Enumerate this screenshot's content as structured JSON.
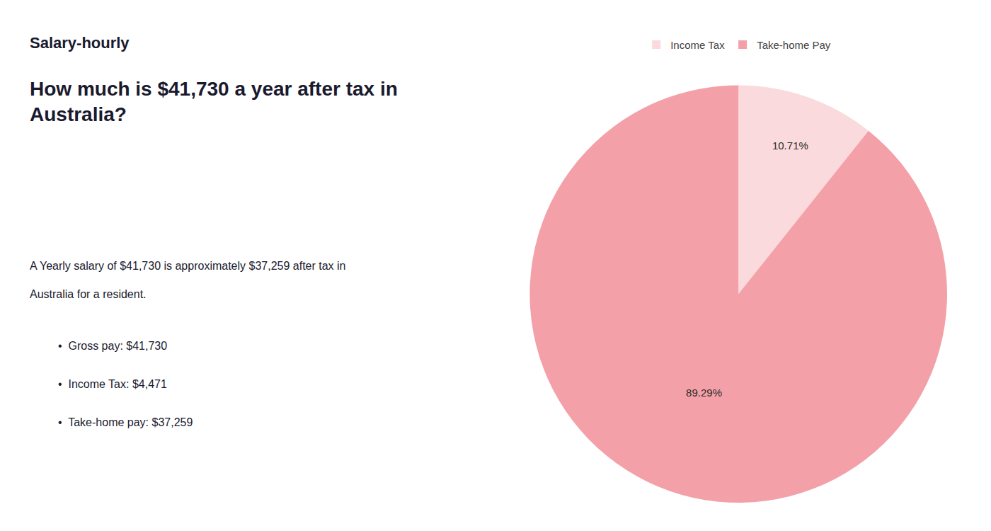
{
  "chart_data": {
    "type": "pie",
    "title": "How much is $41,730 a year after tax in\nAustralia?",
    "categories": [
      "Income Tax",
      "Take-home Pay"
    ],
    "values": [
      10.71,
      89.29
    ],
    "value_labels": [
      "10.71%",
      "89.29%"
    ],
    "colors": [
      "#fadadd",
      "#f4a0a8"
    ],
    "data_labels": true,
    "legend": "top",
    "annotations": [
      "Salary-hourly",
      "A Yearly salary of $41,730 is approximately $37,259 after tax in",
      "Australia for a resident.",
      "•  Gross pay: $41,730",
      "•  Income Tax: $4,471",
      "•  Take-home pay: $37,259"
    ]
  }
}
